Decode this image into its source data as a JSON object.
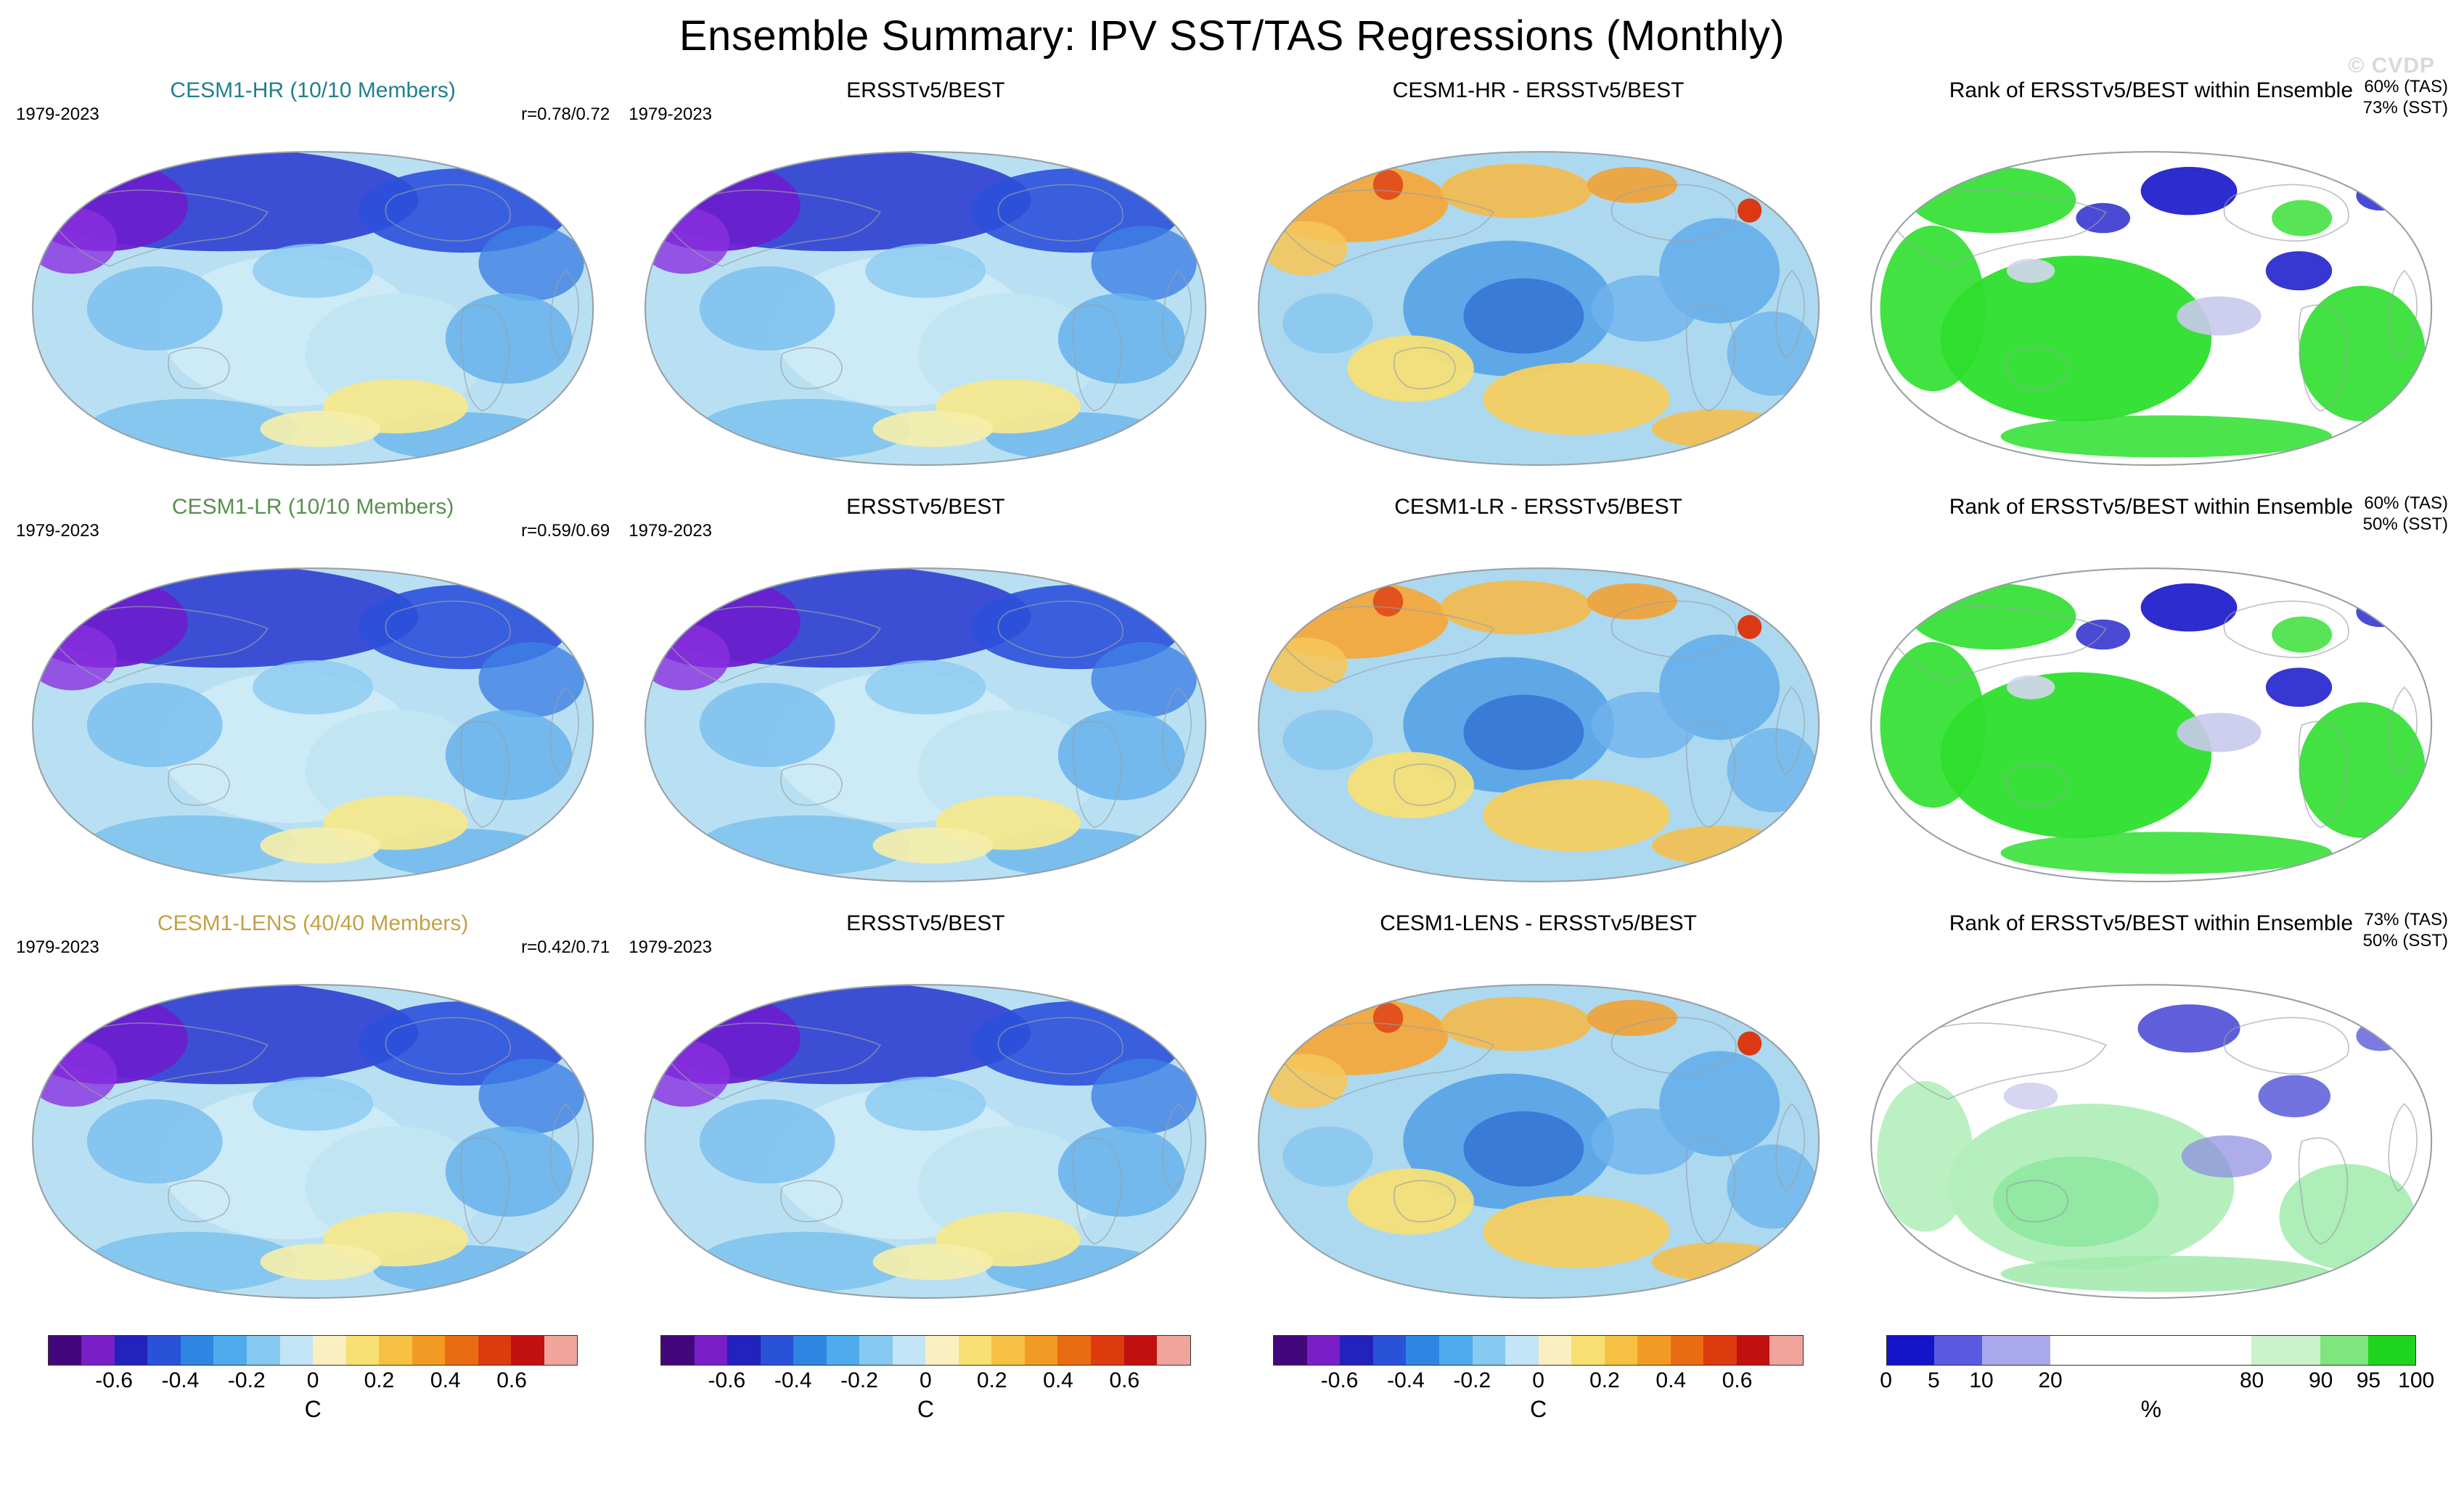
{
  "page": {
    "title": "Ensemble Summary: IPV SST/TAS Regressions (Monthly)",
    "watermark": "© CVDP"
  },
  "chart_data": {
    "type": "heatmap",
    "title": "Ensemble Summary: IPV SST/TAS Regressions (Monthly)",
    "layout": {
      "rows": 3,
      "cols": 4,
      "projection": "Robinson-style global maps, Pacific-centered",
      "column_roles": [
        "model ensemble mean",
        "observations",
        "model minus observations",
        "rank of observations within ensemble"
      ]
    },
    "panels": [
      {
        "row": 1,
        "col": 1,
        "title": "CESM1-HR (10/10 Members)",
        "title_color": "#20808e",
        "period": "1979-2023",
        "right_top": "r=0.78/0.72"
      },
      {
        "row": 1,
        "col": 2,
        "title": "ERSSTv5/BEST",
        "period": "1979-2023"
      },
      {
        "row": 1,
        "col": 3,
        "title": "CESM1-HR - ERSSTv5/BEST"
      },
      {
        "row": 1,
        "col": 4,
        "title": "Rank of ERSSTv5/BEST within Ensemble",
        "right_top": "60% (TAS)",
        "right_bottom": "73% (SST)"
      },
      {
        "row": 2,
        "col": 1,
        "title": "CESM1-LR (10/10 Members)",
        "title_color": "#5a8f50",
        "period": "1979-2023",
        "right_top": "r=0.59/0.69"
      },
      {
        "row": 2,
        "col": 2,
        "title": "ERSSTv5/BEST",
        "period": "1979-2023"
      },
      {
        "row": 2,
        "col": 3,
        "title": "CESM1-LR - ERSSTv5/BEST"
      },
      {
        "row": 2,
        "col": 4,
        "title": "Rank of ERSSTv5/BEST within Ensemble",
        "right_top": "60% (TAS)",
        "right_bottom": "50% (SST)"
      },
      {
        "row": 3,
        "col": 1,
        "title": "CESM1-LENS (40/40 Members)",
        "title_color": "#c3a145",
        "period": "1979-2023",
        "right_top": "r=0.42/0.71"
      },
      {
        "row": 3,
        "col": 2,
        "title": "ERSSTv5/BEST",
        "period": "1979-2023"
      },
      {
        "row": 3,
        "col": 3,
        "title": "CESM1-LENS - ERSSTv5/BEST"
      },
      {
        "row": 3,
        "col": 4,
        "title": "Rank of ERSSTv5/BEST within Ensemble",
        "right_top": "73% (TAS)",
        "right_bottom": "50% (SST)"
      }
    ],
    "colorbars": {
      "regression": {
        "unit": "C",
        "applies_to": "columns 1-3",
        "colors": [
          "#43077c",
          "#7a1fc8",
          "#2222bc",
          "#2a52d8",
          "#2e86e2",
          "#4fabec",
          "#86c9f1",
          "#c2e4f6",
          "#f9efc0",
          "#f7df72",
          "#f6c142",
          "#f29b24",
          "#ea6c12",
          "#dd3a0e",
          "#c01010",
          "#f0a49c"
        ],
        "ticks": [
          "-0.6",
          "-0.4",
          "-0.2",
          "0",
          "0.2",
          "0.4",
          "0.6"
        ],
        "tick_positions": [
          0.125,
          0.25,
          0.375,
          0.5,
          0.625,
          0.75,
          0.875
        ]
      },
      "rank": {
        "unit": "%",
        "applies_to": "column 4",
        "colors": [
          "#1414c8",
          "#5a5ae0",
          "#a9a9ec",
          "#ffffff",
          "#ccf2cc",
          "#7fe67f",
          "#1fd41f"
        ],
        "widths": [
          9,
          9,
          13,
          38,
          13,
          9,
          9
        ],
        "ticks": [
          "0",
          "5",
          "10",
          "20",
          "80",
          "90",
          "95",
          "100"
        ],
        "tick_positions": [
          0,
          0.09,
          0.18,
          0.31,
          0.69,
          0.82,
          0.91,
          1
        ]
      }
    }
  }
}
